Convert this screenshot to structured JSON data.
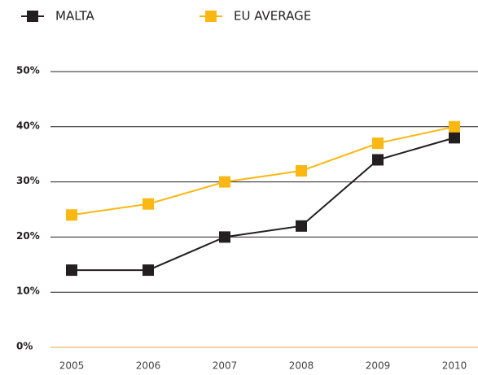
{
  "chart_data": {
    "type": "line",
    "categories": [
      "2005",
      "2006",
      "2007",
      "2008",
      "2009",
      "2010"
    ],
    "series": [
      {
        "name": "MALTA",
        "color": "#231f20",
        "values": [
          14,
          14,
          20,
          22,
          34,
          38
        ]
      },
      {
        "name": "EU AVERAGE",
        "color": "#fbb813",
        "values": [
          24,
          26,
          30,
          32,
          37,
          40
        ]
      }
    ],
    "ylim": [
      0,
      50
    ],
    "yticks": [
      {
        "value": 0,
        "label": "0%"
      },
      {
        "value": 10,
        "label": "10%"
      },
      {
        "value": 20,
        "label": "20%"
      },
      {
        "value": 30,
        "label": "30%"
      },
      {
        "value": 40,
        "label": "40%"
      },
      {
        "value": 50,
        "label": "50%"
      }
    ],
    "grid": true,
    "grid_color": "#231f20",
    "baseline_color": "#e8a33d",
    "legend": "top"
  }
}
